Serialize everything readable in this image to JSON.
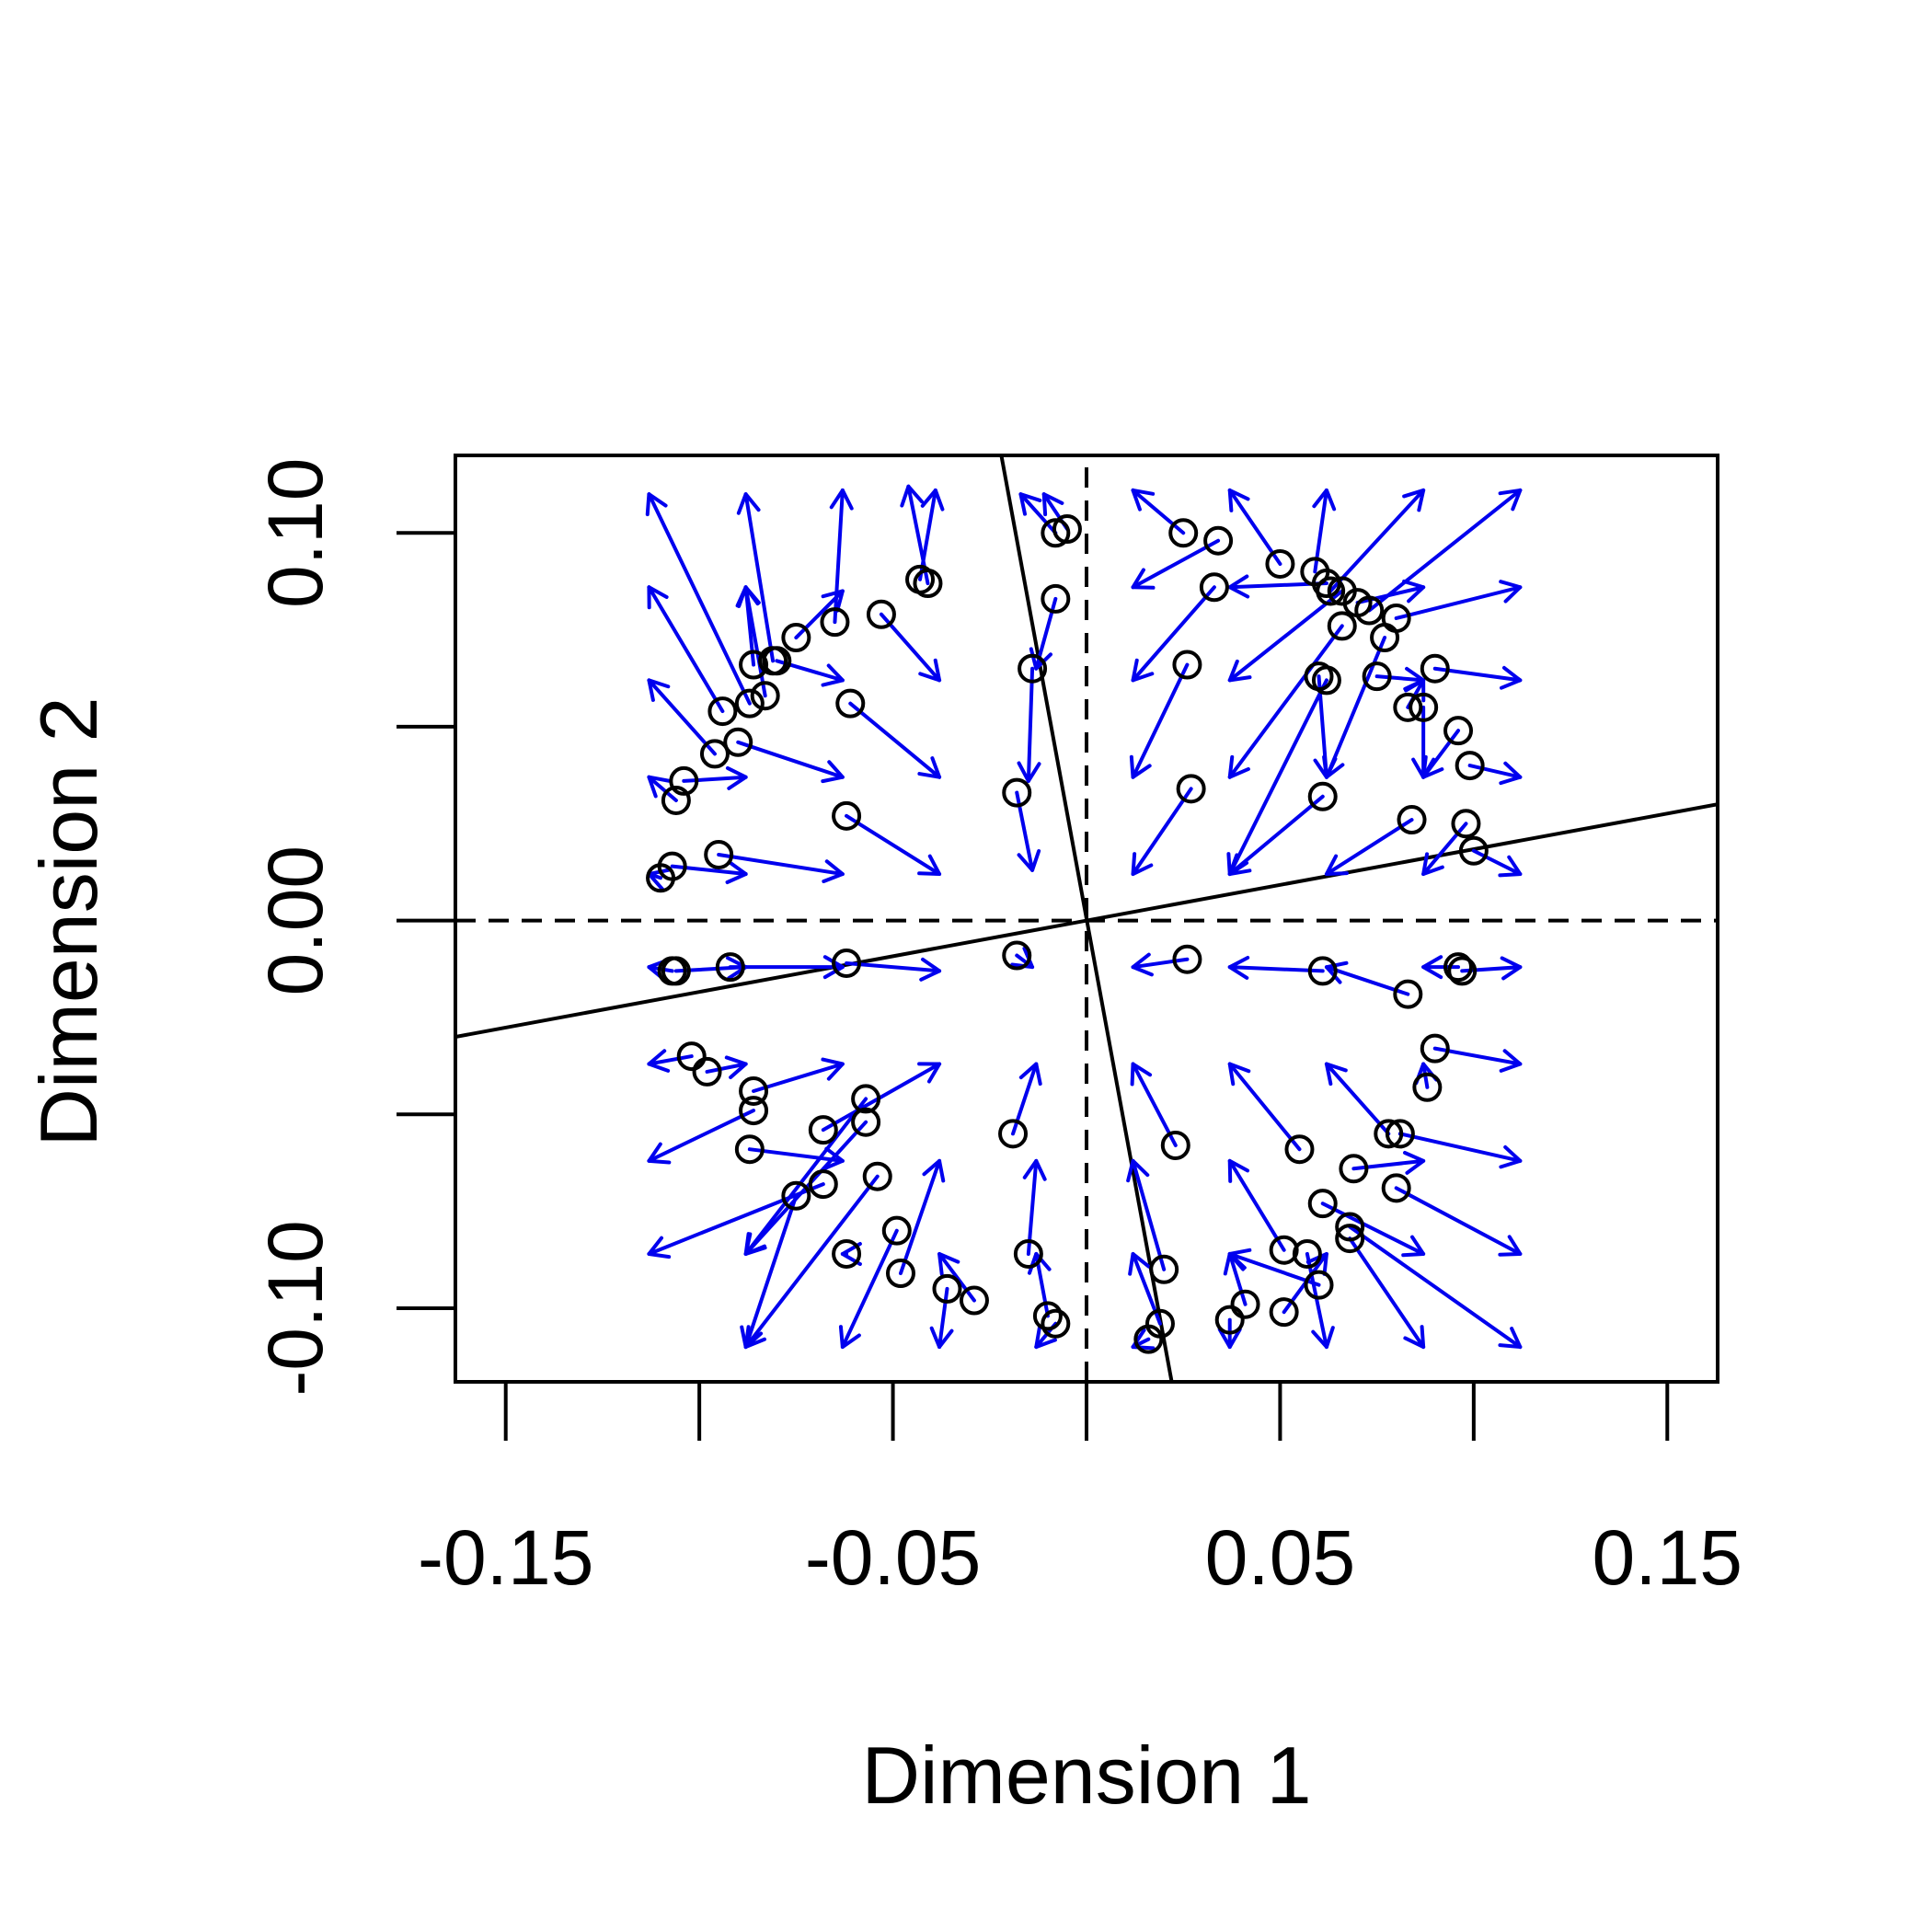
{
  "chart_data": {
    "type": "scatter",
    "title": "",
    "xlabel": "Dimension 1",
    "ylabel": "Dimension 2",
    "xlim": [
      -0.163,
      0.163
    ],
    "ylim": [
      -0.119,
      0.12
    ],
    "x_ticks": [
      -0.15,
      -0.1,
      -0.05,
      0,
      0.05,
      0.1,
      0.15
    ],
    "x_tick_labels": [
      "-0.15",
      "-0.05",
      "0.05",
      "0.15"
    ],
    "x_tick_label_values": [
      -0.15,
      -0.05,
      0.05,
      0.15
    ],
    "y_ticks": [
      -0.1,
      -0.05,
      0,
      0.05,
      0.1
    ],
    "y_tick_labels": [
      "-0.10",
      "0.00",
      "0.10"
    ],
    "y_tick_label_values": [
      -0.1,
      0,
      0.1
    ],
    "grid": false,
    "colors": {
      "points": "#000000",
      "arrows": "#0000ee",
      "lines": "#000000"
    },
    "reference_lines": [
      {
        "name": "vertical-dashed",
        "style": "dashed",
        "from": [
          0,
          -0.119
        ],
        "to": [
          0,
          0.12
        ]
      },
      {
        "name": "horizontal-dashed",
        "style": "dashed",
        "from": [
          -0.163,
          0
        ],
        "to": [
          0.163,
          0
        ]
      },
      {
        "name": "rotated-axis-1",
        "style": "solid",
        "from": [
          -0.163,
          -0.03
        ],
        "to": [
          0.163,
          0.03
        ]
      },
      {
        "name": "rotated-axis-2",
        "style": "solid",
        "from": [
          -0.022,
          0.12
        ],
        "to": [
          0.022,
          -0.119
        ]
      }
    ],
    "points": [
      [
        -0.005,
        0.101
      ],
      [
        -0.008,
        0.1
      ],
      [
        -0.008,
        0.083
      ],
      [
        -0.014,
        0.065
      ],
      [
        -0.018,
        0.033
      ],
      [
        -0.043,
        0.088
      ],
      [
        -0.041,
        0.087
      ],
      [
        -0.053,
        0.079
      ],
      [
        -0.065,
        0.077
      ],
      [
        -0.075,
        0.073
      ],
      [
        -0.081,
        0.067
      ],
      [
        -0.08,
        0.067
      ],
      [
        -0.086,
        0.066
      ],
      [
        -0.083,
        0.058
      ],
      [
        -0.087,
        0.056
      ],
      [
        -0.094,
        0.054
      ],
      [
        -0.09,
        0.046
      ],
      [
        -0.096,
        0.043
      ],
      [
        -0.104,
        0.036
      ],
      [
        -0.106,
        0.031
      ],
      [
        -0.061,
        0.056
      ],
      [
        -0.062,
        0.027
      ],
      [
        -0.095,
        0.017
      ],
      [
        -0.107,
        0.014
      ],
      [
        -0.11,
        0.011
      ],
      [
        -0.107,
        -0.013
      ],
      [
        -0.106,
        -0.013
      ],
      [
        -0.092,
        -0.012
      ],
      [
        -0.062,
        -0.011
      ],
      [
        -0.018,
        -0.009
      ],
      [
        -0.102,
        -0.035
      ],
      [
        -0.098,
        -0.039
      ],
      [
        -0.086,
        -0.044
      ],
      [
        -0.086,
        -0.049
      ],
      [
        -0.087,
        -0.059
      ],
      [
        -0.057,
        -0.046
      ],
      [
        -0.057,
        -0.052
      ],
      [
        -0.068,
        -0.054
      ],
      [
        -0.068,
        -0.068
      ],
      [
        -0.075,
        -0.071
      ],
      [
        -0.054,
        -0.066
      ],
      [
        -0.062,
        -0.086
      ],
      [
        -0.049,
        -0.08
      ],
      [
        -0.048,
        -0.091
      ],
      [
        -0.036,
        -0.095
      ],
      [
        -0.029,
        -0.098
      ],
      [
        -0.019,
        -0.055
      ],
      [
        -0.015,
        -0.086
      ],
      [
        -0.01,
        -0.102
      ],
      [
        -0.008,
        -0.104
      ],
      [
        0.025,
        0.1
      ],
      [
        0.034,
        0.098
      ],
      [
        0.033,
        0.086
      ],
      [
        0.05,
        0.092
      ],
      [
        0.059,
        0.09
      ],
      [
        0.062,
        0.087
      ],
      [
        0.063,
        0.085
      ],
      [
        0.066,
        0.085
      ],
      [
        0.07,
        0.082
      ],
      [
        0.073,
        0.08
      ],
      [
        0.066,
        0.076
      ],
      [
        0.08,
        0.078
      ],
      [
        0.077,
        0.073
      ],
      [
        0.075,
        0.063
      ],
      [
        0.06,
        0.063
      ],
      [
        0.062,
        0.062
      ],
      [
        0.09,
        0.065
      ],
      [
        0.083,
        0.055
      ],
      [
        0.087,
        0.055
      ],
      [
        0.096,
        0.049
      ],
      [
        0.026,
        0.066
      ],
      [
        0.027,
        0.034
      ],
      [
        0.061,
        0.032
      ],
      [
        0.084,
        0.026
      ],
      [
        0.098,
        0.025
      ],
      [
        0.1,
        0.018
      ],
      [
        0.099,
        0.04
      ],
      [
        0.026,
        -0.01
      ],
      [
        0.061,
        -0.013
      ],
      [
        0.083,
        -0.019
      ],
      [
        0.096,
        -0.012
      ],
      [
        0.097,
        -0.013
      ],
      [
        0.09,
        -0.033
      ],
      [
        0.088,
        -0.043
      ],
      [
        0.081,
        -0.055
      ],
      [
        0.078,
        -0.055
      ],
      [
        0.055,
        -0.059
      ],
      [
        0.069,
        -0.064
      ],
      [
        0.08,
        -0.069
      ],
      [
        0.061,
        -0.073
      ],
      [
        0.068,
        -0.079
      ],
      [
        0.068,
        -0.082
      ],
      [
        0.057,
        -0.086
      ],
      [
        0.051,
        -0.085
      ],
      [
        0.06,
        -0.094
      ],
      [
        0.041,
        -0.099
      ],
      [
        0.037,
        -0.103
      ],
      [
        0.051,
        -0.101
      ],
      [
        0.02,
        -0.09
      ],
      [
        0.019,
        -0.104
      ],
      [
        0.016,
        -0.108
      ],
      [
        0.023,
        -0.058
      ]
    ],
    "arrows": [
      [
        -0.005,
        0.101,
        -0.011,
        0.11
      ],
      [
        -0.008,
        0.1,
        -0.017,
        0.11
      ],
      [
        -0.008,
        0.083,
        -0.013,
        0.065
      ],
      [
        -0.014,
        0.065,
        -0.015,
        0.036
      ],
      [
        -0.018,
        0.033,
        -0.014,
        0.013
      ],
      [
        -0.043,
        0.088,
        -0.039,
        0.111
      ],
      [
        -0.041,
        0.087,
        -0.046,
        0.112
      ],
      [
        -0.053,
        0.079,
        -0.038,
        0.062
      ],
      [
        -0.065,
        0.077,
        -0.063,
        0.111
      ],
      [
        -0.075,
        0.073,
        -0.063,
        0.085
      ],
      [
        -0.081,
        0.067,
        -0.088,
        0.11
      ],
      [
        -0.08,
        0.067,
        -0.063,
        0.062
      ],
      [
        -0.086,
        0.066,
        -0.088,
        0.086
      ],
      [
        -0.083,
        0.058,
        -0.088,
        0.086
      ],
      [
        -0.087,
        0.056,
        -0.113,
        0.11
      ],
      [
        -0.094,
        0.054,
        -0.113,
        0.086
      ],
      [
        -0.09,
        0.046,
        -0.063,
        0.037
      ],
      [
        -0.096,
        0.043,
        -0.113,
        0.062
      ],
      [
        -0.104,
        0.036,
        -0.088,
        0.037
      ],
      [
        -0.106,
        0.031,
        -0.113,
        0.037
      ],
      [
        -0.061,
        0.056,
        -0.038,
        0.037
      ],
      [
        -0.062,
        0.027,
        -0.038,
        0.012
      ],
      [
        -0.095,
        0.017,
        -0.063,
        0.012
      ],
      [
        -0.107,
        0.014,
        -0.088,
        0.012
      ],
      [
        -0.11,
        0.011,
        -0.113,
        0.012
      ],
      [
        -0.107,
        -0.013,
        -0.113,
        -0.012
      ],
      [
        -0.106,
        -0.013,
        -0.088,
        -0.012
      ],
      [
        -0.092,
        -0.012,
        -0.063,
        -0.012
      ],
      [
        -0.062,
        -0.011,
        -0.038,
        -0.013
      ],
      [
        -0.018,
        -0.009,
        -0.014,
        -0.012
      ],
      [
        -0.102,
        -0.035,
        -0.113,
        -0.037
      ],
      [
        -0.098,
        -0.039,
        -0.088,
        -0.037
      ],
      [
        -0.086,
        -0.044,
        -0.063,
        -0.037
      ],
      [
        -0.086,
        -0.049,
        -0.113,
        -0.062
      ],
      [
        -0.087,
        -0.059,
        -0.063,
        -0.062
      ],
      [
        -0.057,
        -0.046,
        -0.088,
        -0.086
      ],
      [
        -0.057,
        -0.052,
        -0.088,
        -0.086
      ],
      [
        -0.068,
        -0.054,
        -0.038,
        -0.037
      ],
      [
        -0.068,
        -0.068,
        -0.113,
        -0.086
      ],
      [
        -0.075,
        -0.071,
        -0.088,
        -0.11
      ],
      [
        -0.054,
        -0.066,
        -0.088,
        -0.11
      ],
      [
        -0.062,
        -0.086,
        -0.063,
        -0.086
      ],
      [
        -0.049,
        -0.08,
        -0.063,
        -0.11
      ],
      [
        -0.048,
        -0.091,
        -0.038,
        -0.062
      ],
      [
        -0.036,
        -0.095,
        -0.038,
        -0.11
      ],
      [
        -0.029,
        -0.098,
        -0.038,
        -0.086
      ],
      [
        -0.019,
        -0.055,
        -0.013,
        -0.037
      ],
      [
        -0.015,
        -0.086,
        -0.013,
        -0.062
      ],
      [
        -0.01,
        -0.102,
        -0.013,
        -0.086
      ],
      [
        -0.008,
        -0.104,
        -0.013,
        -0.11
      ],
      [
        0.025,
        0.1,
        0.012,
        0.111
      ],
      [
        0.034,
        0.098,
        0.012,
        0.086
      ],
      [
        0.033,
        0.086,
        0.012,
        0.062
      ],
      [
        0.05,
        0.092,
        0.037,
        0.111
      ],
      [
        0.059,
        0.09,
        0.062,
        0.111
      ],
      [
        0.062,
        0.087,
        0.037,
        0.086
      ],
      [
        0.063,
        0.085,
        0.087,
        0.111
      ],
      [
        0.066,
        0.085,
        0.037,
        0.062
      ],
      [
        0.07,
        0.082,
        0.087,
        0.086
      ],
      [
        0.073,
        0.08,
        0.112,
        0.111
      ],
      [
        0.066,
        0.076,
        0.037,
        0.037
      ],
      [
        0.08,
        0.078,
        0.112,
        0.086
      ],
      [
        0.077,
        0.073,
        0.062,
        0.037
      ],
      [
        0.075,
        0.063,
        0.087,
        0.062
      ],
      [
        0.06,
        0.063,
        0.062,
        0.037
      ],
      [
        0.062,
        0.062,
        0.037,
        0.012
      ],
      [
        0.09,
        0.065,
        0.112,
        0.062
      ],
      [
        0.083,
        0.055,
        0.087,
        0.062
      ],
      [
        0.087,
        0.055,
        0.087,
        0.037
      ],
      [
        0.096,
        0.049,
        0.087,
        0.037
      ],
      [
        0.026,
        0.066,
        0.012,
        0.037
      ],
      [
        0.027,
        0.034,
        0.012,
        0.012
      ],
      [
        0.061,
        0.032,
        0.037,
        0.012
      ],
      [
        0.084,
        0.026,
        0.062,
        0.012
      ],
      [
        0.098,
        0.025,
        0.087,
        0.012
      ],
      [
        0.1,
        0.018,
        0.112,
        0.012
      ],
      [
        0.099,
        0.04,
        0.112,
        0.037
      ],
      [
        0.026,
        -0.01,
        0.012,
        -0.012
      ],
      [
        0.061,
        -0.013,
        0.037,
        -0.012
      ],
      [
        0.083,
        -0.019,
        0.062,
        -0.012
      ],
      [
        0.096,
        -0.012,
        0.087,
        -0.012
      ],
      [
        0.097,
        -0.013,
        0.112,
        -0.012
      ],
      [
        0.09,
        -0.033,
        0.112,
        -0.037
      ],
      [
        0.088,
        -0.043,
        0.087,
        -0.037
      ],
      [
        0.081,
        -0.055,
        0.112,
        -0.062
      ],
      [
        0.078,
        -0.055,
        0.062,
        -0.037
      ],
      [
        0.055,
        -0.059,
        0.037,
        -0.037
      ],
      [
        0.069,
        -0.064,
        0.087,
        -0.062
      ],
      [
        0.08,
        -0.069,
        0.112,
        -0.086
      ],
      [
        0.061,
        -0.073,
        0.087,
        -0.086
      ],
      [
        0.068,
        -0.079,
        0.112,
        -0.11
      ],
      [
        0.068,
        -0.082,
        0.087,
        -0.11
      ],
      [
        0.057,
        -0.086,
        0.062,
        -0.11
      ],
      [
        0.051,
        -0.085,
        0.037,
        -0.062
      ],
      [
        0.06,
        -0.094,
        0.037,
        -0.086
      ],
      [
        0.041,
        -0.099,
        0.037,
        -0.086
      ],
      [
        0.037,
        -0.103,
        0.037,
        -0.11
      ],
      [
        0.051,
        -0.101,
        0.062,
        -0.086
      ],
      [
        0.02,
        -0.09,
        0.012,
        -0.062
      ],
      [
        0.019,
        -0.104,
        0.012,
        -0.086
      ],
      [
        0.016,
        -0.108,
        0.012,
        -0.11
      ],
      [
        0.023,
        -0.058,
        0.012,
        -0.037
      ]
    ]
  }
}
